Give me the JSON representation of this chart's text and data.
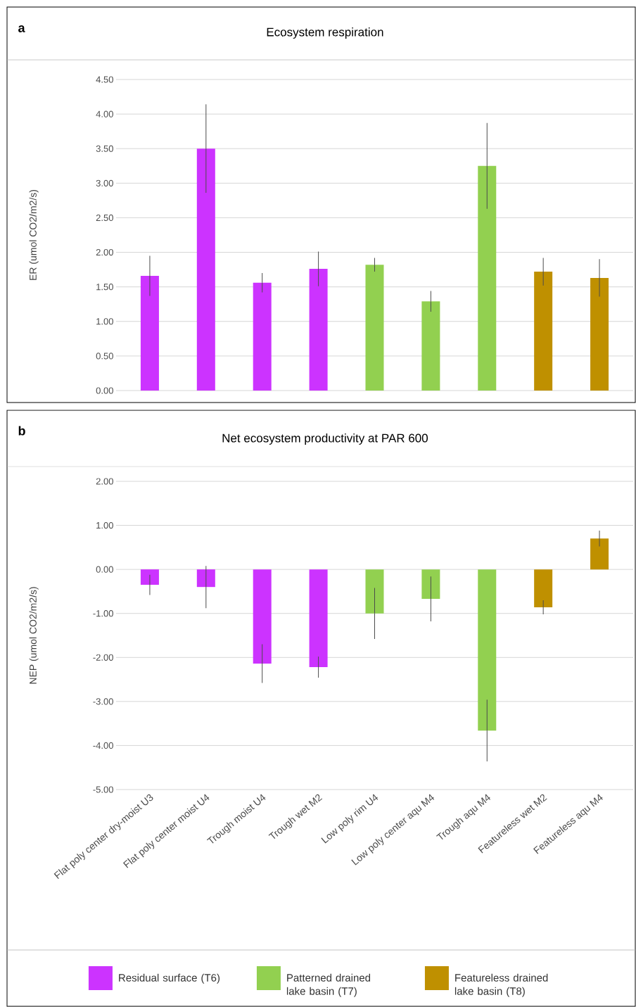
{
  "chart_data": [
    {
      "type": "bar",
      "title": "Ecosystem respiration",
      "ylabel": "ER (umol CO2/m2/s)",
      "annotations": [
        "a"
      ],
      "categories": [
        null,
        null,
        null,
        null,
        null,
        null,
        null,
        null,
        null
      ],
      "series": [
        {
          "color": "#cc33ff",
          "values": [
            1.66,
            3.5,
            1.56,
            1.76,
            null,
            null,
            null,
            null,
            null
          ],
          "errors": [
            0.29,
            0.64,
            0.14,
            0.25,
            null,
            null,
            null,
            null,
            null
          ]
        },
        {
          "color": "#92d050",
          "values": [
            null,
            null,
            null,
            null,
            1.82,
            1.29,
            3.25,
            null,
            null
          ],
          "errors": [
            null,
            null,
            null,
            null,
            0.1,
            0.15,
            0.62,
            null,
            null
          ]
        },
        {
          "color": "#bf9000",
          "values": [
            null,
            null,
            null,
            null,
            null,
            null,
            null,
            1.72,
            1.63
          ],
          "errors": [
            null,
            null,
            null,
            null,
            null,
            null,
            null,
            0.2,
            0.27
          ]
        }
      ],
      "ylim": [
        0,
        4.5
      ],
      "yticks": [
        {
          "value": 0,
          "label": "0.00"
        },
        {
          "value": 0.5,
          "label": "0.50"
        },
        {
          "value": 1,
          "label": "1.00"
        },
        {
          "value": 1.5,
          "label": "1.50"
        },
        {
          "value": 2,
          "label": "2.00"
        },
        {
          "value": 2.5,
          "label": "2.50"
        },
        {
          "value": 3,
          "label": "3.00"
        },
        {
          "value": 3.5,
          "label": "3.50"
        },
        {
          "value": 4,
          "label": "4.00"
        },
        {
          "value": 4.5,
          "label": "4.50"
        }
      ],
      "grid": "y"
    },
    {
      "type": "bar",
      "title": "Net ecosystem productivity at PAR 600",
      "ylabel": "NEP (umol CO2/m2/s)",
      "annotations": [
        "b"
      ],
      "categories": [
        "Flat poly center dry-moist U3",
        "Flat poly center moist U4",
        "Trough moist U4",
        "Trough wet M2",
        "Low poly rim U4",
        "Low poly center aqu M4",
        "Trough aqu M4",
        "Featureless wet M2",
        "Featureless aqu M4"
      ],
      "series": [
        {
          "name": "Residual surface (T6)",
          "color": "#cc33ff",
          "values": [
            -0.35,
            -0.4,
            -2.14,
            -2.22,
            null,
            null,
            null,
            null,
            null
          ],
          "errors": [
            0.23,
            0.48,
            0.44,
            0.24,
            null,
            null,
            null,
            null,
            null
          ]
        },
        {
          "name": "Patterned drained lake basin (T7)",
          "color": "#92d050",
          "values": [
            null,
            null,
            null,
            null,
            -1.0,
            -0.67,
            -3.66,
            null,
            null
          ],
          "errors": [
            null,
            null,
            null,
            null,
            0.58,
            0.51,
            0.7,
            null,
            null
          ]
        },
        {
          "name": "Featureless drained lake basin (T8)",
          "color": "#bf9000",
          "values": [
            null,
            null,
            null,
            null,
            null,
            null,
            null,
            -0.86,
            0.7
          ],
          "errors": [
            null,
            null,
            null,
            null,
            null,
            null,
            null,
            0.16,
            0.18
          ]
        }
      ],
      "ylim": [
        -5,
        2
      ],
      "yticks": [
        {
          "value": -5,
          "label": "-5.00"
        },
        {
          "value": -4,
          "label": "-4.00"
        },
        {
          "value": -3,
          "label": "-3.00"
        },
        {
          "value": -2,
          "label": "-2.00"
        },
        {
          "value": -1,
          "label": "-1.00"
        },
        {
          "value": 0,
          "label": "0.00"
        },
        {
          "value": 1,
          "label": "1.00"
        },
        {
          "value": 2,
          "label": "2.00"
        }
      ],
      "grid": "y",
      "legend": "bottom"
    }
  ]
}
